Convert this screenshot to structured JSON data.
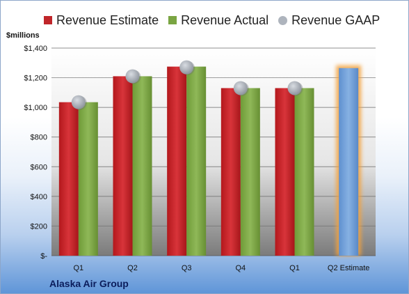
{
  "chart_data": {
    "type": "bar",
    "company": "Alaska Air Group",
    "ylabel": "$millions",
    "categories": [
      "Q1",
      "Q2",
      "Q3",
      "Q4",
      "Q1",
      "Q2 Estimate"
    ],
    "ylim": [
      0,
      1400
    ],
    "yticks": [
      0,
      200,
      400,
      600,
      800,
      1000,
      1200,
      1400
    ],
    "ytick_labels": [
      "$-",
      "$200",
      "$400",
      "$600",
      "$800",
      "$1,000",
      "$1,200",
      "$1,400"
    ],
    "legend_position": "top",
    "grid": true,
    "series": [
      {
        "name": "Revenue Estimate",
        "type": "bar",
        "color": "#c0262a",
        "values": [
          1035,
          1210,
          1275,
          1130,
          1130,
          null
        ]
      },
      {
        "name": "Revenue Actual",
        "type": "bar",
        "color": "#7aa542",
        "values": [
          1035,
          1210,
          1275,
          1130,
          1130,
          null
        ]
      },
      {
        "name": "Revenue GAAP",
        "type": "scatter",
        "color": "#aeb4bd",
        "values": [
          1035,
          1210,
          1270,
          1130,
          1130,
          null
        ]
      },
      {
        "name": "Q2 Estimate",
        "type": "bar",
        "color": "#6f9fd8",
        "highlight": "#f3a23c",
        "values": [
          null,
          null,
          null,
          null,
          null,
          1265
        ]
      }
    ]
  }
}
